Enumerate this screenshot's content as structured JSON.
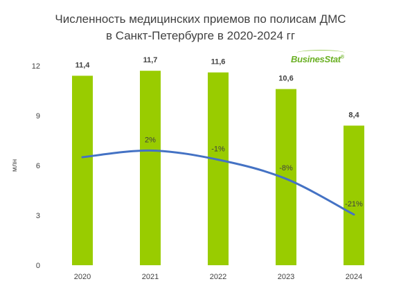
{
  "title_line1": "Численность медицинских приемов по полисам ДМС",
  "title_line2": "в Санкт-Петербурге в 2020-2024 гг",
  "logo": {
    "text": "BusinesStat",
    "mark": "®"
  },
  "colors": {
    "bar": "#99cc00",
    "line": "#4472c4",
    "text": "#404040"
  },
  "chart_data": {
    "type": "bar",
    "categories": [
      "2020",
      "2021",
      "2022",
      "2023",
      "2024"
    ],
    "values": [
      11.4,
      11.7,
      11.6,
      10.6,
      8.4
    ],
    "value_labels": [
      "11,4",
      "11,7",
      "11,6",
      "10,6",
      "8,4"
    ],
    "ylabel": "млн",
    "ylim": [
      0,
      12
    ],
    "yticks": [
      0,
      3,
      6,
      9,
      12
    ],
    "grid": false,
    "line_series": {
      "type": "line",
      "values": [
        6.5,
        6.9,
        6.35,
        5.2,
        3.05
      ],
      "labels": [
        "",
        "2%",
        "-1%",
        "-8%",
        "-21%"
      ]
    }
  }
}
